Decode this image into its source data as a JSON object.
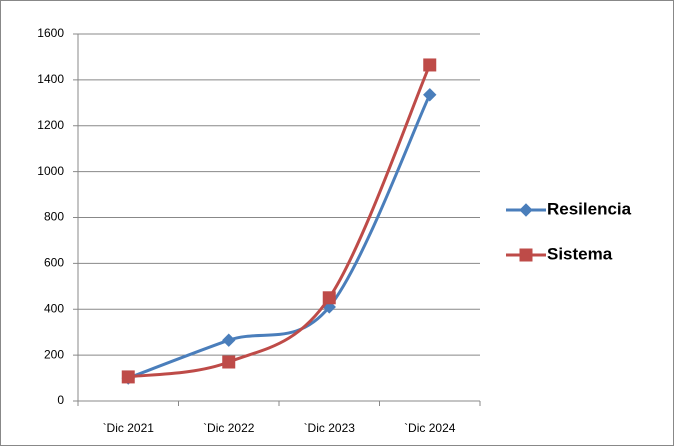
{
  "chart_data": {
    "type": "line",
    "categories": [
      "`Dic 2021",
      "`Dic 2022",
      "`Dic 2023",
      "`Dic 2024"
    ],
    "series": [
      {
        "name": "Resilencia",
        "color": "#4a7ebb",
        "marker": "diamond",
        "values": [
          100,
          265,
          410,
          1335
        ]
      },
      {
        "name": "Sistema",
        "color": "#be4b48",
        "marker": "square",
        "values": [
          105,
          170,
          450,
          1465
        ]
      }
    ],
    "ylim": [
      0,
      1600
    ],
    "yticks": [
      0,
      200,
      400,
      600,
      800,
      1000,
      1200,
      1400,
      1600
    ],
    "grid": true,
    "smooth": true,
    "legend": "right"
  }
}
